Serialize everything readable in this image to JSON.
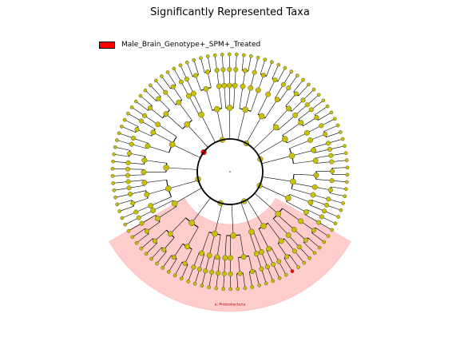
{
  "chart_data": {
    "type": "cladogram",
    "title": "Significantly Represented Taxa",
    "legend": {
      "placement": "top-left",
      "entries": [
        {
          "name": "Male_Brain_Genotype+_SPM+_Treated",
          "color": "#ff0000"
        }
      ]
    },
    "clades": [
      {
        "label": "a: Proteobacteria",
        "group": "Male_Brain_Genotype+_SPM+_Treated",
        "start_deg": 30,
        "end_deg": 150
      }
    ],
    "node_colors": {
      "default": "#c8c000",
      "enriched": "#ff0000",
      "highlight_fill": "#ffcccc"
    },
    "levels": 6,
    "phyla": [
      {
        "classes": [
          3,
          2,
          2
        ]
      },
      {
        "classes": [
          2,
          3
        ]
      },
      {
        "classes": [
          3,
          2,
          3
        ]
      },
      {
        "classes": [
          2,
          2
        ]
      },
      {
        "classes": [
          3,
          3,
          2
        ]
      },
      {
        "classes": [
          2,
          3,
          2
        ]
      },
      {
        "classes": [
          3,
          2
        ]
      },
      {
        "classes": [
          2,
          2,
          3
        ]
      }
    ],
    "enriched_nodes": [
      "phylum-6",
      "phylum-6-class-1-genus-2"
    ]
  }
}
